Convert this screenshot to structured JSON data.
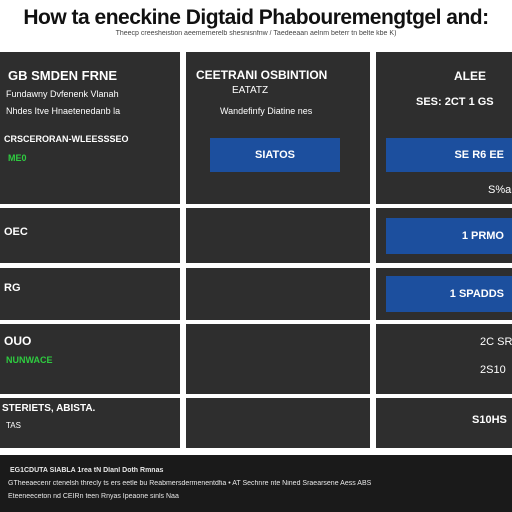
{
  "header": {
    "title": "How ta eneckine Digtaid Phabouremengtgel and:",
    "subtitle": "Theecp creesheistion aeemernerelb shesnisnfnw / Taedeeaan aelnm beterr tn belte kbe K)"
  },
  "columns": {
    "col1": {
      "title": "GB SMDEN FRNE",
      "lines": [
        "Fundawny Dvfenenk Vlanah",
        "Nhdes Itve Hnaetenedanb la"
      ]
    },
    "col2": {
      "title": "CEETRANI OSBINTION",
      "line2": "EATATZ",
      "line3": "Wandefinfy Diatine nes"
    },
    "col3": {
      "title": "ALEE",
      "line2": "SES: 2CT 1 GS"
    }
  },
  "rows": [
    {
      "label": "CRSCERORAN-WLEESSSEO",
      "sublabel": "ME0",
      "bar": "SIATOS",
      "right_bar": "SE R6 EE",
      "right_text": "S%a"
    },
    {
      "label": "OEC",
      "right_bar": "1 PRMO"
    },
    {
      "label": "RG",
      "right_bar": "1 SPADDS"
    },
    {
      "label": "OUO",
      "sublabel": "NUNWACE",
      "right_text_1": "2C SR",
      "right_text_2": "2S10"
    },
    {
      "label": "STERIETS, ABISTA.",
      "sublabel": "TAS",
      "right_text": "S10HS"
    }
  ],
  "footer": {
    "line1": "EG1CDUTA SIABLA         1rea   tN Dlanl Doth Rmnas",
    "line2": "GTheeaecenr ctenelsh threcly ts ers eetle bu Reabmersdermenentdfia  • AT Sechnre  nte Nined Sraearsene Aess ABS",
    "line3": "Eteeneeceton  nd CEIRn teen Rnyas Ipeaone sinls Naa"
  }
}
